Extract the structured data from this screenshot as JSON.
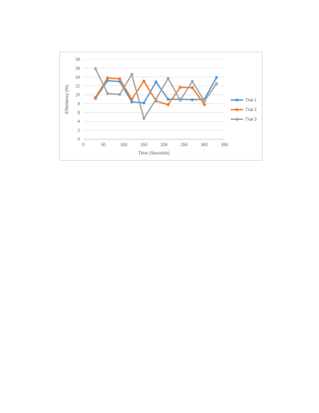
{
  "chart_data": {
    "type": "line",
    "title": "",
    "xlabel": "Time (Seconds)",
    "ylabel": "Effeciency (%)",
    "xlim": [
      0,
      350
    ],
    "ylim": [
      0,
      18
    ],
    "x_ticks": [
      0,
      50,
      100,
      150,
      200,
      250,
      300,
      350
    ],
    "y_ticks": [
      0,
      2,
      4,
      6,
      8,
      10,
      12,
      14,
      16,
      18
    ],
    "grid": "horizontal",
    "legend_position": "right",
    "series": [
      {
        "name": "Trial 1",
        "color": "#5b9bd5",
        "x": [
          30,
          60,
          90,
          120,
          150,
          180,
          210,
          240,
          270,
          300,
          330
        ],
        "y": [
          9.2,
          13.2,
          13.0,
          8.4,
          8.2,
          12.9,
          9.0,
          9.0,
          8.9,
          9.0,
          13.9
        ]
      },
      {
        "name": "Trial 2",
        "color": "#ed7d31",
        "x": [
          30,
          60,
          90,
          120,
          150,
          180,
          210,
          240,
          270,
          300
        ],
        "y": [
          9.4,
          13.8,
          13.6,
          9.0,
          13.1,
          8.6,
          7.8,
          11.7,
          11.6,
          7.8
        ]
      },
      {
        "name": "Trial 3",
        "color": "#a5a5a5",
        "x": [
          30,
          60,
          90,
          120,
          150,
          180,
          210,
          240,
          270,
          300,
          330
        ],
        "y": [
          15.9,
          10.3,
          10.1,
          14.6,
          4.7,
          9.0,
          13.7,
          8.8,
          13.0,
          8.6,
          12.5
        ]
      }
    ]
  }
}
